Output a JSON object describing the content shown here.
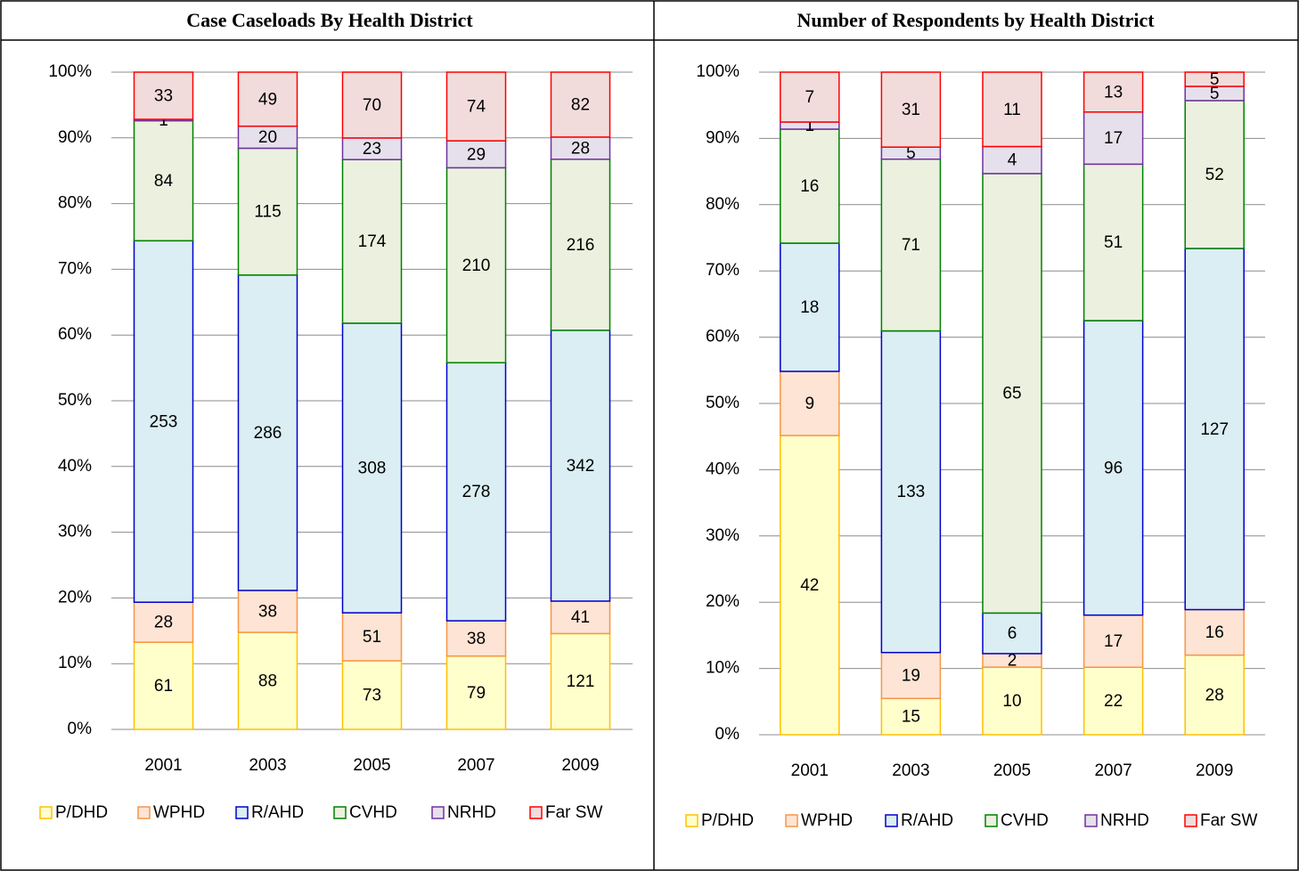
{
  "chart_data": [
    {
      "type": "bar",
      "stacked": "percent",
      "title": "Case Caseloads By Health District",
      "categories": [
        "2001",
        "2003",
        "2005",
        "2007",
        "2009"
      ],
      "series": [
        {
          "name": "P/DHD",
          "color": "#ffffcc",
          "edge": "#ffc000",
          "values": [
            61,
            88,
            73,
            79,
            121
          ]
        },
        {
          "name": "WPHD",
          "color": "#fde4d4",
          "edge": "#f79646",
          "values": [
            28,
            38,
            51,
            38,
            41
          ]
        },
        {
          "name": "R/AHD",
          "color": "#daeef3",
          "edge": "#0000cc",
          "values": [
            253,
            286,
            308,
            278,
            342
          ]
        },
        {
          "name": "CVHD",
          "color": "#ebf1de",
          "edge": "#008000",
          "values": [
            84,
            115,
            174,
            210,
            216
          ]
        },
        {
          "name": "NRHD",
          "color": "#e6e0ec",
          "edge": "#7030a0",
          "values": [
            1,
            20,
            23,
            29,
            28
          ]
        },
        {
          "name": "Far SW",
          "color": "#f2dcdb",
          "edge": "#ff0000",
          "values": [
            33,
            49,
            70,
            74,
            82
          ]
        }
      ],
      "ylim": [
        0,
        100
      ],
      "yticks": [
        {
          "value": 0,
          "label": "0%"
        },
        {
          "value": 10,
          "label": "10%"
        },
        {
          "value": 20,
          "label": "20%"
        },
        {
          "value": 30,
          "label": "30%"
        },
        {
          "value": 40,
          "label": "40%"
        },
        {
          "value": 50,
          "label": "50%"
        },
        {
          "value": 60,
          "label": "60%"
        },
        {
          "value": 70,
          "label": "70%"
        },
        {
          "value": 80,
          "label": "80%"
        },
        {
          "value": 90,
          "label": "90%"
        },
        {
          "value": 100,
          "label": "100%"
        }
      ],
      "grid": true,
      "legend": "bottom"
    },
    {
      "type": "bar",
      "stacked": "percent",
      "title": "Number of Respondents by Health District",
      "categories": [
        "2001",
        "2003",
        "2005",
        "2007",
        "2009"
      ],
      "series": [
        {
          "name": "P/DHD",
          "color": "#ffffcc",
          "edge": "#ffc000",
          "values": [
            42,
            15,
            10,
            22,
            28
          ]
        },
        {
          "name": "WPHD",
          "color": "#fde4d4",
          "edge": "#f79646",
          "values": [
            9,
            19,
            2,
            17,
            16
          ]
        },
        {
          "name": "R/AHD",
          "color": "#daeef3",
          "edge": "#0000cc",
          "values": [
            18,
            133,
            6,
            96,
            127
          ]
        },
        {
          "name": "CVHD",
          "color": "#ebf1de",
          "edge": "#008000",
          "values": [
            16,
            71,
            65,
            51,
            52
          ]
        },
        {
          "name": "NRHD",
          "color": "#e6e0ec",
          "edge": "#7030a0",
          "values": [
            1,
            5,
            4,
            17,
            5
          ]
        },
        {
          "name": "Far SW",
          "color": "#f2dcdb",
          "edge": "#ff0000",
          "values": [
            7,
            31,
            11,
            13,
            5
          ]
        }
      ],
      "ylim": [
        0,
        100
      ],
      "yticks": [
        {
          "value": 0,
          "label": "0%"
        },
        {
          "value": 10,
          "label": "10%"
        },
        {
          "value": 20,
          "label": "20%"
        },
        {
          "value": 30,
          "label": "30%"
        },
        {
          "value": 40,
          "label": "40%"
        },
        {
          "value": 50,
          "label": "50%"
        },
        {
          "value": 60,
          "label": "60%"
        },
        {
          "value": 70,
          "label": "70%"
        },
        {
          "value": 80,
          "label": "80%"
        },
        {
          "value": 90,
          "label": "90%"
        },
        {
          "value": 100,
          "label": "100%"
        }
      ],
      "grid": true,
      "legend": "bottom"
    }
  ]
}
